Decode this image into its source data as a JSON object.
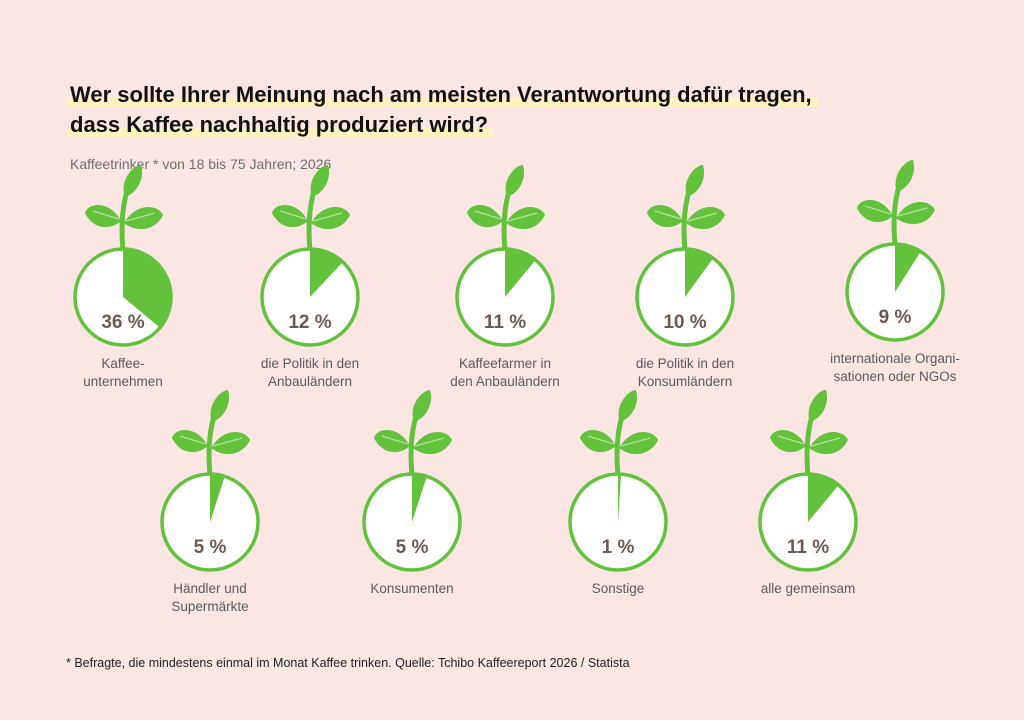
{
  "title_lines": [
    "Wer sollte Ihrer Meinung nach am meisten Verantwortung dafür tragen,",
    "dass Kaffee nachhaltig produziert wird?"
  ],
  "subtitle": "Kaffeetrinker * von 18 bis 75 Jahren; 2026",
  "footnote": "* Befragte, die mindestens einmal im Monat Kaffee trinken. Quelle: Tchibo Kaffeereport 2026 / Statista",
  "colors": {
    "accent": "#62c23c",
    "background": "#fbe6e4",
    "highlight": "#fdf2c0",
    "percent_text": "#6b5a52"
  },
  "icon": "plant-sprout-icon",
  "chart_data": {
    "type": "pie",
    "unit": "%",
    "categories": [
      "Kaffee-\nunternehmen",
      "die Politik in den\nAnbauländern",
      "Kaffeefarmer in\nden Anbauländern",
      "die Politik in den\nKonsumländern",
      "internationale Organi-\nsationen oder NGOs",
      "Händler und\nSupermärkte",
      "Konsumenten",
      "Sonstige",
      "alle gemeinsam"
    ],
    "values": [
      36,
      12,
      11,
      10,
      9,
      5,
      5,
      1,
      11
    ],
    "labels": [
      "36 %",
      "12 %",
      "11 %",
      "10 %",
      "9 %",
      "5 %",
      "5 %",
      "1 %",
      "11 %"
    ]
  }
}
